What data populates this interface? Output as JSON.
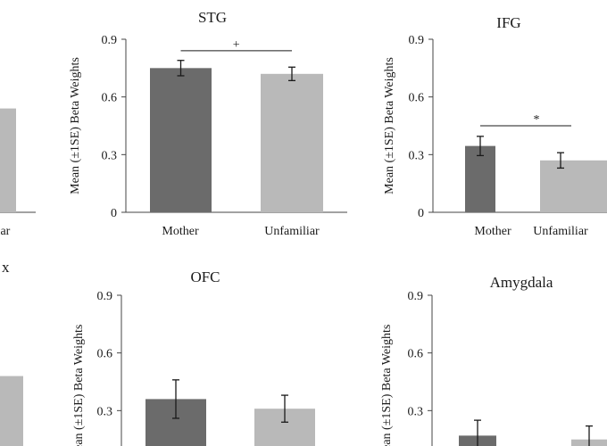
{
  "chart_data": [
    {
      "type": "bar",
      "title": "",
      "categories": [
        "",
        "Unfamiliar"
      ],
      "values": [
        null,
        0.54
      ],
      "errors": [
        null,
        null
      ],
      "ylim": [
        0,
        0.9
      ],
      "colors": [
        "#6b6b6b",
        "#b9b9b9"
      ]
    },
    {
      "type": "bar",
      "title": "STG",
      "ylabel": "Mean (±1SE) Beta Weights",
      "categories": [
        "Mother",
        "Unfamiliar"
      ],
      "values": [
        0.75,
        0.72
      ],
      "errors": [
        0.04,
        0.035
      ],
      "yticks": [
        "0",
        "0.3",
        "0.6",
        "0.9"
      ],
      "ylim": [
        0,
        0.9
      ],
      "significance": {
        "marker": "+",
        "y": 0.84
      },
      "colors": [
        "#6b6b6b",
        "#b9b9b9"
      ]
    },
    {
      "type": "bar",
      "title": "IFG",
      "ylabel": "Mean (±1SE) Beta Weights",
      "categories": [
        "Mother",
        "Unfamiliar"
      ],
      "values": [
        0.345,
        0.27
      ],
      "errors": [
        0.05,
        0.04
      ],
      "yticks": [
        "0",
        "0.3",
        "0.6",
        "0.9"
      ],
      "ylim": [
        0,
        0.9
      ],
      "significance": {
        "marker": "*",
        "y": 0.45
      },
      "colors": [
        "#6b6b6b",
        "#b9b9b9"
      ]
    },
    {
      "type": "bar",
      "title": "x",
      "categories": [
        ""
      ],
      "values": [
        0.54
      ],
      "errors": [
        null
      ],
      "ylim": [
        0,
        0.9
      ],
      "colors": [
        "#b9b9b9"
      ]
    },
    {
      "type": "bar",
      "title": "OFC",
      "ylabel": "Mean (±1SE) Beta Weights",
      "categories": [
        "Mother",
        "Unfamiliar"
      ],
      "values": [
        0.36,
        0.31
      ],
      "errors": [
        0.1,
        0.07
      ],
      "yticks": [
        "0.3",
        "0.6",
        "0.9"
      ],
      "ylim": [
        0,
        0.9
      ],
      "colors": [
        "#6b6b6b",
        "#b9b9b9"
      ]
    },
    {
      "type": "bar",
      "title": "Amygdala",
      "ylabel": "Mean (±1SE) Beta Weights",
      "categories": [
        "Mother",
        "Unfamiliar"
      ],
      "values": [
        0.17,
        0.15
      ],
      "errors": [
        0.08,
        0.07
      ],
      "yticks": [
        "0.3",
        "0.6",
        "0.9"
      ],
      "ylim": [
        0,
        0.9
      ],
      "colors": [
        "#6b6b6b",
        "#b9b9b9"
      ]
    }
  ]
}
